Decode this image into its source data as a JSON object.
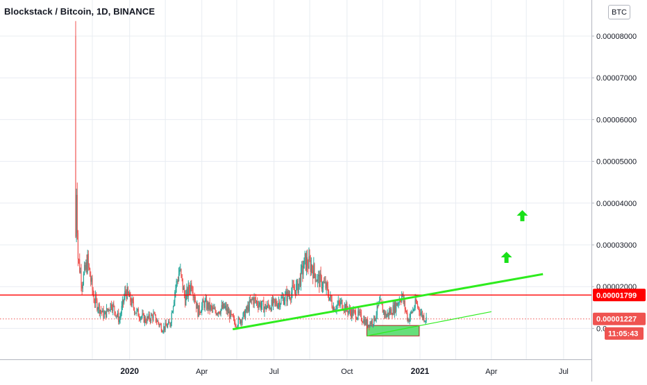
{
  "header": {
    "symbol_title": "Blockstack / Bitcoin, 1D, BINANCE",
    "currency_badge": "BTC"
  },
  "price_axis": {
    "labels": [
      "0.00008000",
      "0.00007000",
      "0.00006000",
      "0.00005000",
      "0.00004000",
      "0.00003000",
      "0.00002000",
      "0.0"
    ],
    "resistance_label": "0.00001799",
    "last_price_label": "0.00001227",
    "countdown_label": "11:05:43"
  },
  "time_axis": {
    "labels": [
      "2020",
      "Apr",
      "Jul",
      "Oct",
      "2021",
      "Apr",
      "Jul"
    ],
    "bold": [
      "2020",
      "2021"
    ]
  },
  "colors": {
    "up": "#26a69a",
    "down": "#ef5350",
    "resistance_line": "#ff0000",
    "trend_line": "#2eec1e",
    "support_zone": "#4cd964",
    "arrow": "#18e018",
    "grid": "#e8ecf2",
    "axis_text": "#131722"
  },
  "chart_data": {
    "type": "candlestick",
    "title": "Blockstack / Bitcoin, 1D, BINANCE",
    "ylim": [
      0.0,
      8.5e-05
    ],
    "y_ticks": [
      1e-05,
      2e-05,
      3e-05,
      4e-05,
      5e-05,
      6e-05,
      7e-05,
      8e-05
    ],
    "grid": true,
    "resistance_level": 1.799e-05,
    "last_price": 1.227e-05,
    "price_path": [
      [
        "2019-10-25",
        8e-05
      ],
      [
        "2019-10-26",
        3.2e-05
      ],
      [
        "2019-10-27",
        4.4e-05
      ],
      [
        "2019-10-29",
        2.7e-05
      ],
      [
        "2019-11-03",
        2.1e-05
      ],
      [
        "2019-11-10",
        2.6e-05
      ],
      [
        "2019-11-18",
        1.7e-05
      ],
      [
        "2019-12-01",
        1.3e-05
      ],
      [
        "2019-12-10",
        1.6e-05
      ],
      [
        "2019-12-20",
        1.2e-05
      ],
      [
        "2019-12-28",
        1.9e-05
      ],
      [
        "2020-01-10",
        1.4e-05
      ],
      [
        "2020-01-22",
        1.2e-05
      ],
      [
        "2020-02-01",
        1.3e-05
      ],
      [
        "2020-02-12",
        1e-05
      ],
      [
        "2020-02-22",
        1.1e-05
      ],
      [
        "2020-02-28",
        1.9e-05
      ],
      [
        "2020-03-05",
        2.4e-05
      ],
      [
        "2020-03-12",
        1.7e-05
      ],
      [
        "2020-03-20",
        2.1e-05
      ],
      [
        "2020-03-28",
        1.4e-05
      ],
      [
        "2020-04-05",
        1.6e-05
      ],
      [
        "2020-04-18",
        1.4e-05
      ],
      [
        "2020-05-01",
        1.5e-05
      ],
      [
        "2020-05-15",
        1.1e-05
      ],
      [
        "2020-05-25",
        1.3e-05
      ],
      [
        "2020-06-05",
        1.7e-05
      ],
      [
        "2020-06-20",
        1.5e-05
      ],
      [
        "2020-07-05",
        1.6e-05
      ],
      [
        "2020-07-20",
        1.8e-05
      ],
      [
        "2020-08-01",
        2e-05
      ],
      [
        "2020-08-10",
        2.6e-05
      ],
      [
        "2020-08-18",
        2.5e-05
      ],
      [
        "2020-08-25",
        2.2e-05
      ],
      [
        "2020-09-05",
        2e-05
      ],
      [
        "2020-09-15",
        1.5e-05
      ],
      [
        "2020-09-25",
        1.6e-05
      ],
      [
        "2020-10-05",
        1.4e-05
      ],
      [
        "2020-10-18",
        1.3e-05
      ],
      [
        "2020-10-28",
        1.1e-05
      ],
      [
        "2020-11-05",
        1.2e-05
      ],
      [
        "2020-11-12",
        1.6e-05
      ],
      [
        "2020-11-20",
        1.3e-05
      ],
      [
        "2020-12-01",
        1.5e-05
      ],
      [
        "2020-12-10",
        1.8e-05
      ],
      [
        "2020-12-18",
        1.2e-05
      ],
      [
        "2020-12-28",
        1.6e-05
      ],
      [
        "2021-01-05",
        1.3e-05
      ],
      [
        "2021-01-10",
        1.227e-05
      ]
    ],
    "annotations": {
      "rising_trendline": {
        "from": [
          "2020-05-10",
          9.8e-06
        ],
        "to": [
          "2021-06-05",
          2.3e-05
        ]
      },
      "lower_trendline": {
        "from": [
          "2020-10-26",
          8.2e-06
        ],
        "to": [
          "2021-04-01",
          1.4e-05
        ]
      },
      "support_box": {
        "x": [
          "2020-10-26",
          "2020-12-31"
        ],
        "y": [
          8.2e-06,
          1.07e-05
        ]
      },
      "up_arrows": [
        [
          "2021-04-20",
          2.7e-05
        ],
        [
          "2021-05-10",
          3.7e-05
        ]
      ]
    }
  }
}
